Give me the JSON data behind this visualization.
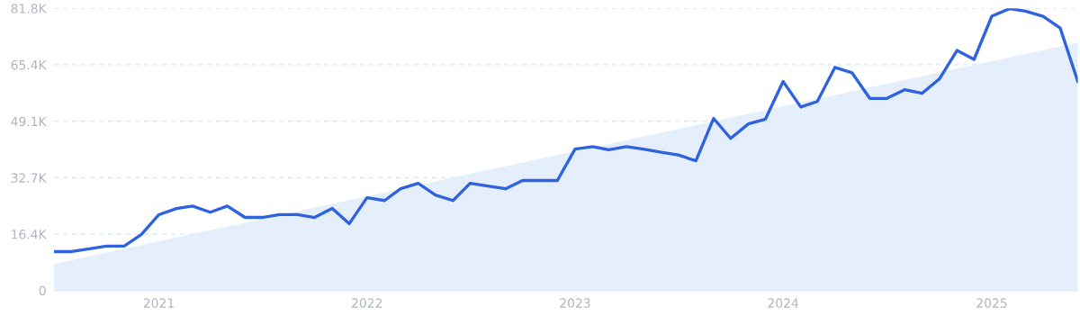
{
  "chart_data": {
    "type": "line",
    "x": [
      "2020-07",
      "2020-08",
      "2020-09",
      "2020-10",
      "2020-11",
      "2020-12",
      "2021-01",
      "2021-02",
      "2021-03",
      "2021-04",
      "2021-05",
      "2021-06",
      "2021-07",
      "2021-08",
      "2021-09",
      "2021-10",
      "2021-11",
      "2021-12",
      "2022-01",
      "2022-02",
      "2022-03",
      "2022-04",
      "2022-05",
      "2022-06",
      "2022-07",
      "2022-08",
      "2022-09",
      "2022-10",
      "2022-11",
      "2022-12",
      "2023-01",
      "2023-02",
      "2023-03",
      "2023-04",
      "2023-05",
      "2023-06",
      "2023-07",
      "2023-08",
      "2023-09",
      "2023-10",
      "2023-11",
      "2023-12",
      "2024-01",
      "2024-02",
      "2024-03",
      "2024-04",
      "2024-05",
      "2024-06",
      "2024-07",
      "2024-08",
      "2024-09",
      "2024-10",
      "2024-11",
      "2024-12",
      "2025-01",
      "2025-02",
      "2025-03",
      "2025-04",
      "2025-05",
      "2025-06"
    ],
    "series": [
      {
        "type": "area",
        "color": "#e2edfb",
        "x": [
          "2020-07",
          "2025-06"
        ],
        "values": [
          7700,
          71900
        ]
      },
      {
        "color": "#2f62e0",
        "values": [
          11300,
          11300,
          12100,
          12900,
          12900,
          16200,
          22000,
          23800,
          24500,
          22700,
          24500,
          21200,
          21200,
          22000,
          22000,
          21200,
          23800,
          19400,
          26900,
          26100,
          29500,
          31100,
          27700,
          26100,
          31100,
          30300,
          29500,
          31900,
          31900,
          31900,
          41000,
          41700,
          40800,
          41700,
          41000,
          40100,
          39300,
          37600,
          49900,
          44100,
          48300,
          49700,
          60600,
          53200,
          54800,
          64700,
          63100,
          55700,
          55700,
          58200,
          57200,
          61300,
          69600,
          67000,
          79500,
          81700,
          81000,
          79500,
          76100,
          60600
        ]
      }
    ],
    "xlim": [
      "2020-07",
      "2025-06"
    ],
    "xticks": [
      {
        "value": "2021-01",
        "label": "2021"
      },
      {
        "value": "2022-01",
        "label": "2022"
      },
      {
        "value": "2023-01",
        "label": "2023"
      },
      {
        "value": "2024-01",
        "label": "2024"
      },
      {
        "value": "2025-01",
        "label": "2025"
      }
    ],
    "ylim": [
      0,
      81800
    ],
    "yticks": [
      0,
      {
        "value": 16360,
        "label": "16.4K"
      },
      {
        "value": 32720,
        "label": "32.7K"
      },
      {
        "value": 49080,
        "label": "49.1K"
      },
      {
        "value": 65440,
        "label": "65.4K"
      },
      {
        "value": 81800,
        "label": "81.8K"
      }
    ],
    "grid": "y",
    "marker": "none",
    "line_style": "solid"
  }
}
